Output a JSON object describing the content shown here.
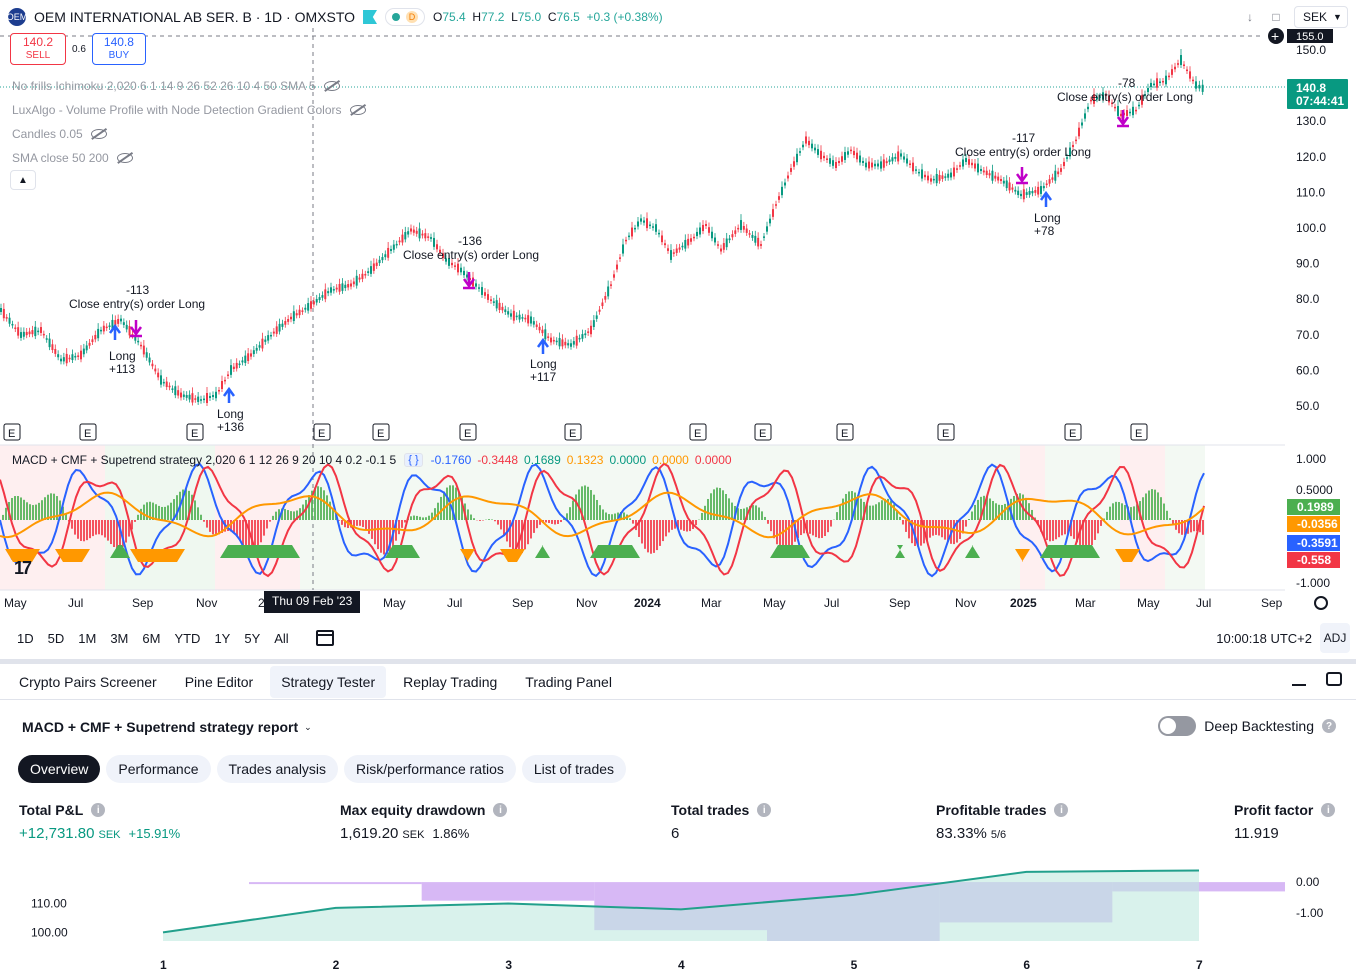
{
  "symbol": {
    "title": "OEM INTERNATIONAL AB SER. B · 1D · OMXSTO",
    "logo_text": "OEM",
    "status_letter": "D",
    "ohlc": {
      "o_label": "O",
      "o": "75.4",
      "h_label": "H",
      "h": "77.2",
      "l_label": "L",
      "l": "75.0",
      "c_label": "C",
      "c": "76.5",
      "change": "+0.3 (+0.38%)"
    }
  },
  "trade": {
    "sell_price": "140.2",
    "sell_label": "SELL",
    "spread": "0.6",
    "buy_price": "140.8",
    "buy_label": "BUY"
  },
  "indicators": [
    {
      "name": "No frills Ichimoku 2,020 6 1 14 9 26 52 26 10 4 50 SMA 5"
    },
    {
      "name": "LuxAlgo - Volume Profile with Node Detection Gradient Colors"
    },
    {
      "name": "Candles 0.05"
    },
    {
      "name": "SMA close 50 200"
    }
  ],
  "top_right": {
    "currency": "SEK"
  },
  "price_axis": {
    "labels": [
      "150.0",
      "140.0",
      "130.0",
      "120.0",
      "110.0",
      "100.0",
      "90.0",
      "80.0",
      "70.0",
      "60.0",
      "50.0"
    ],
    "crosshair_price": "155.0",
    "last_price": "140.8",
    "countdown": "07:44:41"
  },
  "annotations": {
    "trades": [
      {
        "entry_label": "Long",
        "entry_pnl": "+113",
        "exit_label": "Close entry(s) order Long",
        "exit_pnl": "-113"
      },
      {
        "entry_label": "Long",
        "entry_pnl": "+136",
        "exit_label": "Close entry(s) order Long",
        "exit_pnl": "-136"
      },
      {
        "entry_label": "Long",
        "entry_pnl": "+117",
        "exit_label": "Close entry(s) order Long",
        "exit_pnl": "-117"
      },
      {
        "entry_label": "Long",
        "entry_pnl": "+78",
        "exit_label": "Close entry(s) order Long",
        "exit_pnl": "-78"
      }
    ],
    "earnings_marker": "E"
  },
  "macd": {
    "legend": "MACD + CMF + Supetrend strategy 2,020 6 1 12 26 9 20 10 4 0.2 -0.1 5",
    "code_chip": "{ }",
    "values": [
      {
        "v": "-0.1760",
        "color": "#2962ff"
      },
      {
        "v": "-0.3448",
        "color": "#f23645"
      },
      {
        "v": "0.1689",
        "color": "#089981"
      },
      {
        "v": "0.1323",
        "color": "#ff9800"
      },
      {
        "v": "0.0000",
        "color": "#089981"
      },
      {
        "v": "0.0000",
        "color": "#ff9800"
      },
      {
        "v": "0.0000",
        "color": "#f23645"
      }
    ],
    "axis_labels": [
      "1.000",
      "0.5000",
      "-1.000"
    ],
    "badges": [
      {
        "v": "0.1989",
        "color": "#4caf50"
      },
      {
        "v": "-0.0356",
        "color": "#ff9800"
      },
      {
        "v": "-0.3591",
        "color": "#2962ff"
      },
      {
        "v": "-0.558",
        "color": "#f23645"
      }
    ]
  },
  "time_axis": {
    "labels": [
      "May",
      "Jul",
      "Sep",
      "Nov",
      "2",
      "May",
      "Jul",
      "Sep",
      "Nov",
      "2024",
      "Mar",
      "May",
      "Jul",
      "Sep",
      "Nov",
      "2025",
      "Mar",
      "May",
      "Jul",
      "Sep"
    ],
    "crosshair_date": "Thu 09 Feb '23"
  },
  "range_bar": {
    "ranges": [
      "1D",
      "5D",
      "1M",
      "3M",
      "6M",
      "YTD",
      "1Y",
      "5Y",
      "All"
    ],
    "time": "10:00:18 UTC+2",
    "adj": "ADJ"
  },
  "panel": {
    "tabs": [
      "Crypto Pairs Screener",
      "Pine Editor",
      "Strategy Tester",
      "Replay Trading",
      "Trading Panel"
    ],
    "active_tab": 2,
    "report_title": "MACD + CMF + Supetrend strategy report",
    "deep_backtesting": "Deep Backtesting",
    "subtabs": [
      "Overview",
      "Performance",
      "Trades analysis",
      "Risk/performance ratios",
      "List of trades"
    ],
    "metrics": [
      {
        "label": "Total P&L",
        "value": "+12,731.80",
        "unit": "SEK",
        "extra": "+15.91%"
      },
      {
        "label": "Max equity drawdown",
        "value": "1,619.20",
        "unit": "SEK",
        "extra": "1.86%"
      },
      {
        "label": "Total trades",
        "value": "6",
        "unit": "",
        "extra": ""
      },
      {
        "label": "Profitable trades",
        "value": "83.33%",
        "unit": "5/6",
        "extra": ""
      },
      {
        "label": "Profit factor",
        "value": "11.919",
        "unit": "",
        "extra": ""
      }
    ]
  },
  "chart_data": {
    "type": "area",
    "x": [
      1,
      2,
      3,
      4,
      5,
      6,
      7
    ],
    "series": [
      {
        "values": [
          100.0,
          108.5,
          110.0,
          108.0,
          113.0,
          121.0,
          121.5
        ]
      },
      {
        "values": [
          0.0,
          -0.05,
          -0.6,
          -1.55,
          -1.9,
          -1.3,
          -0.3
        ]
      }
    ],
    "left_axis_labels": [
      "110.00",
      "100.00"
    ],
    "right_axis_labels": [
      "0.00",
      "-1.00"
    ],
    "ylim_left": [
      97,
      122
    ],
    "ylim_right": [
      -1.9,
      0.1
    ]
  }
}
